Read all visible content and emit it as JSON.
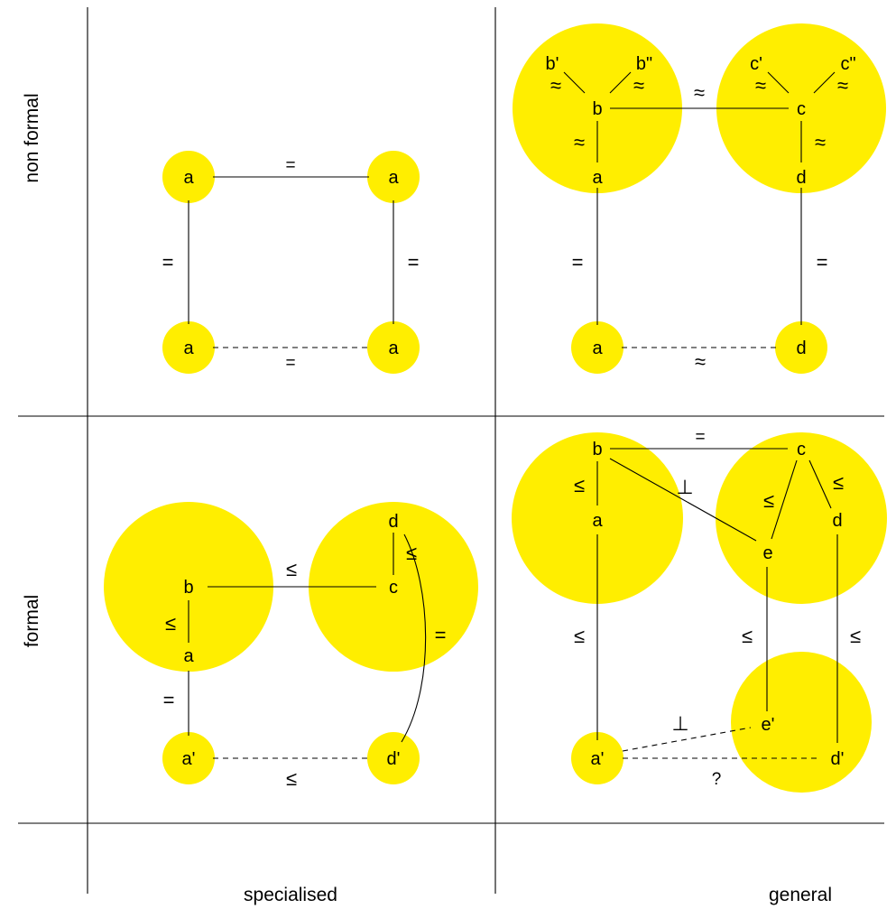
{
  "colors": {
    "highlight": "#ffee00",
    "line": "#000000",
    "background": "#ffffff"
  },
  "axes": {
    "row_top": "non formal",
    "row_bottom": "formal",
    "col_left": "specialised",
    "col_right": "general"
  },
  "q1": {
    "nodes": [
      "a",
      "a",
      "a",
      "a"
    ],
    "rel_top": "=",
    "rel_left": "=",
    "rel_right": "=",
    "rel_bottom": "="
  },
  "q2": {
    "nodes": {
      "b1": "b'",
      "b2": "b\"",
      "b": "b",
      "c1": "c'",
      "c2": "c\"",
      "c": "c",
      "a": "a",
      "d": "d",
      "a_low": "a",
      "d_low": "d"
    },
    "rel_b1": "≈",
    "rel_b2": "≈",
    "rel_c1": "≈",
    "rel_c2": "≈",
    "rel_bc": "≈",
    "rel_ba": "≈",
    "rel_cd": "≈",
    "rel_left": "=",
    "rel_right": "=",
    "rel_bottom": "≈"
  },
  "q3": {
    "nodes": {
      "b": "b",
      "a": "a",
      "c": "c",
      "d": "d",
      "a_low": "a'",
      "d_low": "d'"
    },
    "rel_bc": "≤",
    "rel_ba": "≤",
    "rel_dc": "≤",
    "rel_curve": "=",
    "rel_left": "=",
    "rel_bottom": "≤"
  },
  "q4": {
    "nodes": {
      "b": "b",
      "c": "c",
      "a": "a",
      "d": "d",
      "e": "e",
      "e_low": "e'",
      "a_low": "a'",
      "d_low": "d'"
    },
    "rel_bc": "=",
    "rel_be": "⊥",
    "rel_ba": "≤",
    "rel_ce": "≤",
    "rel_cd": "≤",
    "rel_left": "≤",
    "rel_mid": "≤",
    "rel_right": "≤",
    "rel_ae": "⊥",
    "rel_ad": "?"
  }
}
